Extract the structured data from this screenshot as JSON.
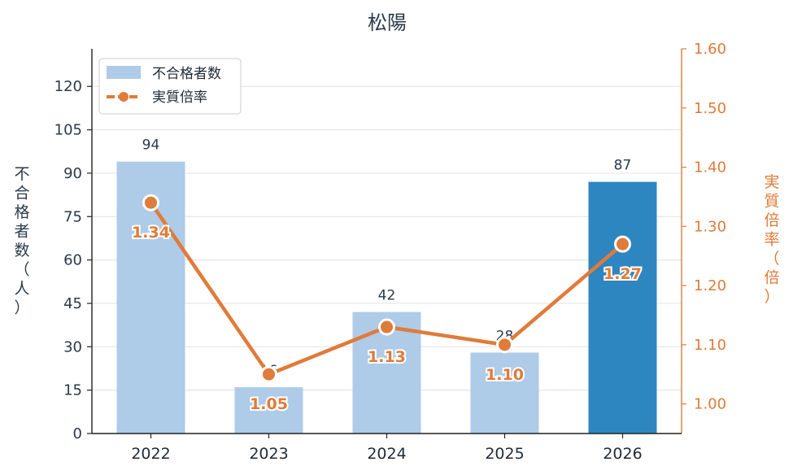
{
  "chart_data": {
    "type": "bar",
    "title": "松陽",
    "categories": [
      "2022",
      "2023",
      "2024",
      "2025",
      "2026"
    ],
    "series": [
      {
        "name": "不合格者数",
        "type": "bar",
        "axis": "left",
        "values": [
          94,
          16,
          42,
          28,
          87
        ],
        "highlight_index": 4,
        "color": "#aecbe8",
        "highlight_color": "#2e86c1"
      },
      {
        "name": "実質倍率",
        "type": "line",
        "axis": "right",
        "values": [
          1.34,
          1.05,
          1.13,
          1.1,
          1.27
        ],
        "labels": [
          "1.34",
          "1.05",
          "1.13",
          "1.10",
          "1.27"
        ],
        "color": "#e07b39"
      }
    ],
    "y_left": {
      "label": "不合格者数（人）",
      "range": [
        0,
        133
      ],
      "ticks": [
        0,
        15,
        30,
        45,
        60,
        75,
        90,
        105,
        120
      ]
    },
    "y_right": {
      "label": "実質倍率（倍）",
      "range": [
        0.95,
        1.6
      ],
      "ticks": [
        "1.00",
        "1.10",
        "1.20",
        "1.30",
        "1.40",
        "1.50",
        "1.60"
      ]
    },
    "grid": true,
    "legend": "top-left"
  }
}
